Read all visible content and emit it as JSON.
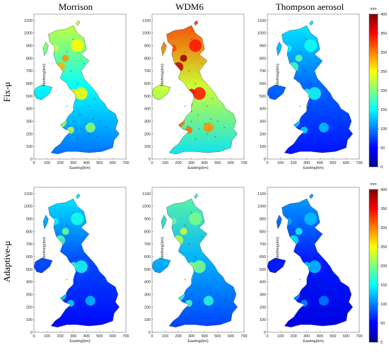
{
  "figure": {
    "columns": [
      "Morrison",
      "WDM6",
      "Thompson aerosol"
    ],
    "rows": [
      "Fix-μ",
      "Adaptive-μ"
    ],
    "x_axis_label": "Easting(km)",
    "y_axis_label": "Northing(km)",
    "x_ticks": [
      "0",
      "100",
      "200",
      "300",
      "400",
      "500",
      "600",
      "700"
    ],
    "y_ticks": [
      "0",
      "100",
      "200",
      "300",
      "400",
      "500",
      "600",
      "700",
      "800",
      "900",
      "1000",
      "1100"
    ],
    "colorbar": {
      "unit": "mm",
      "ticks": [
        "0",
        "50",
        "100",
        "150",
        "200",
        "250",
        "300",
        "350",
        "400"
      ],
      "colormap": [
        "#00008f",
        "#0000ff",
        "#0080ff",
        "#00ffff",
        "#80ff80",
        "#ffff00",
        "#ff8000",
        "#ff0000",
        "#800000"
      ]
    }
  },
  "chart_data": {
    "type": "heatmap",
    "description_note": "",
    "panels": [
      {
        "row": "Fix-μ",
        "column": "Morrison",
        "base_level": 150,
        "north_level": 240
      },
      {
        "row": "Fix-μ",
        "column": "WDM6",
        "base_level": 230,
        "north_level": 330
      },
      {
        "row": "Fix-μ",
        "column": "Thompson aerosol",
        "base_level": 90,
        "north_level": 150
      },
      {
        "row": "Adaptive-μ",
        "column": "Morrison",
        "base_level": 80,
        "north_level": 150
      },
      {
        "row": "Adaptive-μ",
        "column": "WDM6",
        "base_level": 120,
        "north_level": 190
      },
      {
        "row": "Adaptive-μ",
        "column": "Thompson aerosol",
        "base_level": 60,
        "north_level": 120
      }
    ],
    "xlim": [
      0,
      700
    ],
    "ylim": [
      0,
      1150
    ],
    "zlim": [
      0,
      400
    ]
  }
}
